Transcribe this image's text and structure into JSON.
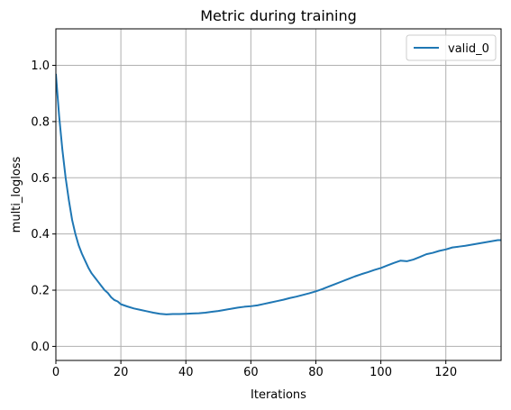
{
  "chart_data": {
    "type": "line",
    "title": "Metric during training",
    "xlabel": "Iterations",
    "ylabel": "multi_logloss",
    "xlim": [
      0,
      137
    ],
    "ylim": [
      -0.05,
      1.13
    ],
    "xticks": [
      0,
      20,
      40,
      60,
      80,
      100,
      120
    ],
    "yticks": [
      0.0,
      0.2,
      0.4,
      0.6,
      0.8,
      1.0
    ],
    "xtick_labels": [
      "0",
      "20",
      "40",
      "60",
      "80",
      "100",
      "120"
    ],
    "ytick_labels": [
      "0.0",
      "0.2",
      "0.4",
      "0.6",
      "0.8",
      "1.0"
    ],
    "grid": true,
    "legend_position": "top-right",
    "series": [
      {
        "name": "valid_0",
        "color": "#1f77b4",
        "x": [
          0,
          1,
          2,
          3,
          4,
          5,
          6,
          7,
          8,
          9,
          10,
          11,
          12,
          13,
          14,
          15,
          16,
          17,
          18,
          19,
          20,
          22,
          24,
          26,
          28,
          30,
          32,
          34,
          36,
          38,
          40,
          42,
          44,
          46,
          48,
          50,
          52,
          54,
          56,
          58,
          60,
          62,
          64,
          66,
          68,
          70,
          72,
          74,
          76,
          78,
          80,
          82,
          84,
          86,
          88,
          90,
          92,
          94,
          96,
          98,
          100,
          102,
          104,
          106,
          108,
          110,
          112,
          114,
          116,
          118,
          120,
          122,
          124,
          126,
          128,
          130,
          132,
          134,
          136,
          137
        ],
        "y": [
          0.97,
          0.82,
          0.7,
          0.6,
          0.52,
          0.45,
          0.4,
          0.36,
          0.33,
          0.305,
          0.28,
          0.26,
          0.245,
          0.23,
          0.215,
          0.2,
          0.19,
          0.175,
          0.165,
          0.16,
          0.15,
          0.142,
          0.135,
          0.13,
          0.125,
          0.12,
          0.116,
          0.114,
          0.115,
          0.115,
          0.116,
          0.117,
          0.118,
          0.12,
          0.123,
          0.126,
          0.13,
          0.134,
          0.138,
          0.141,
          0.143,
          0.146,
          0.151,
          0.156,
          0.161,
          0.166,
          0.172,
          0.177,
          0.183,
          0.189,
          0.196,
          0.204,
          0.213,
          0.222,
          0.231,
          0.24,
          0.249,
          0.257,
          0.264,
          0.272,
          0.279,
          0.288,
          0.297,
          0.305,
          0.303,
          0.309,
          0.318,
          0.328,
          0.333,
          0.34,
          0.345,
          0.352,
          0.355,
          0.358,
          0.362,
          0.366,
          0.37,
          0.374,
          0.378,
          0.378
        ]
      }
    ]
  }
}
